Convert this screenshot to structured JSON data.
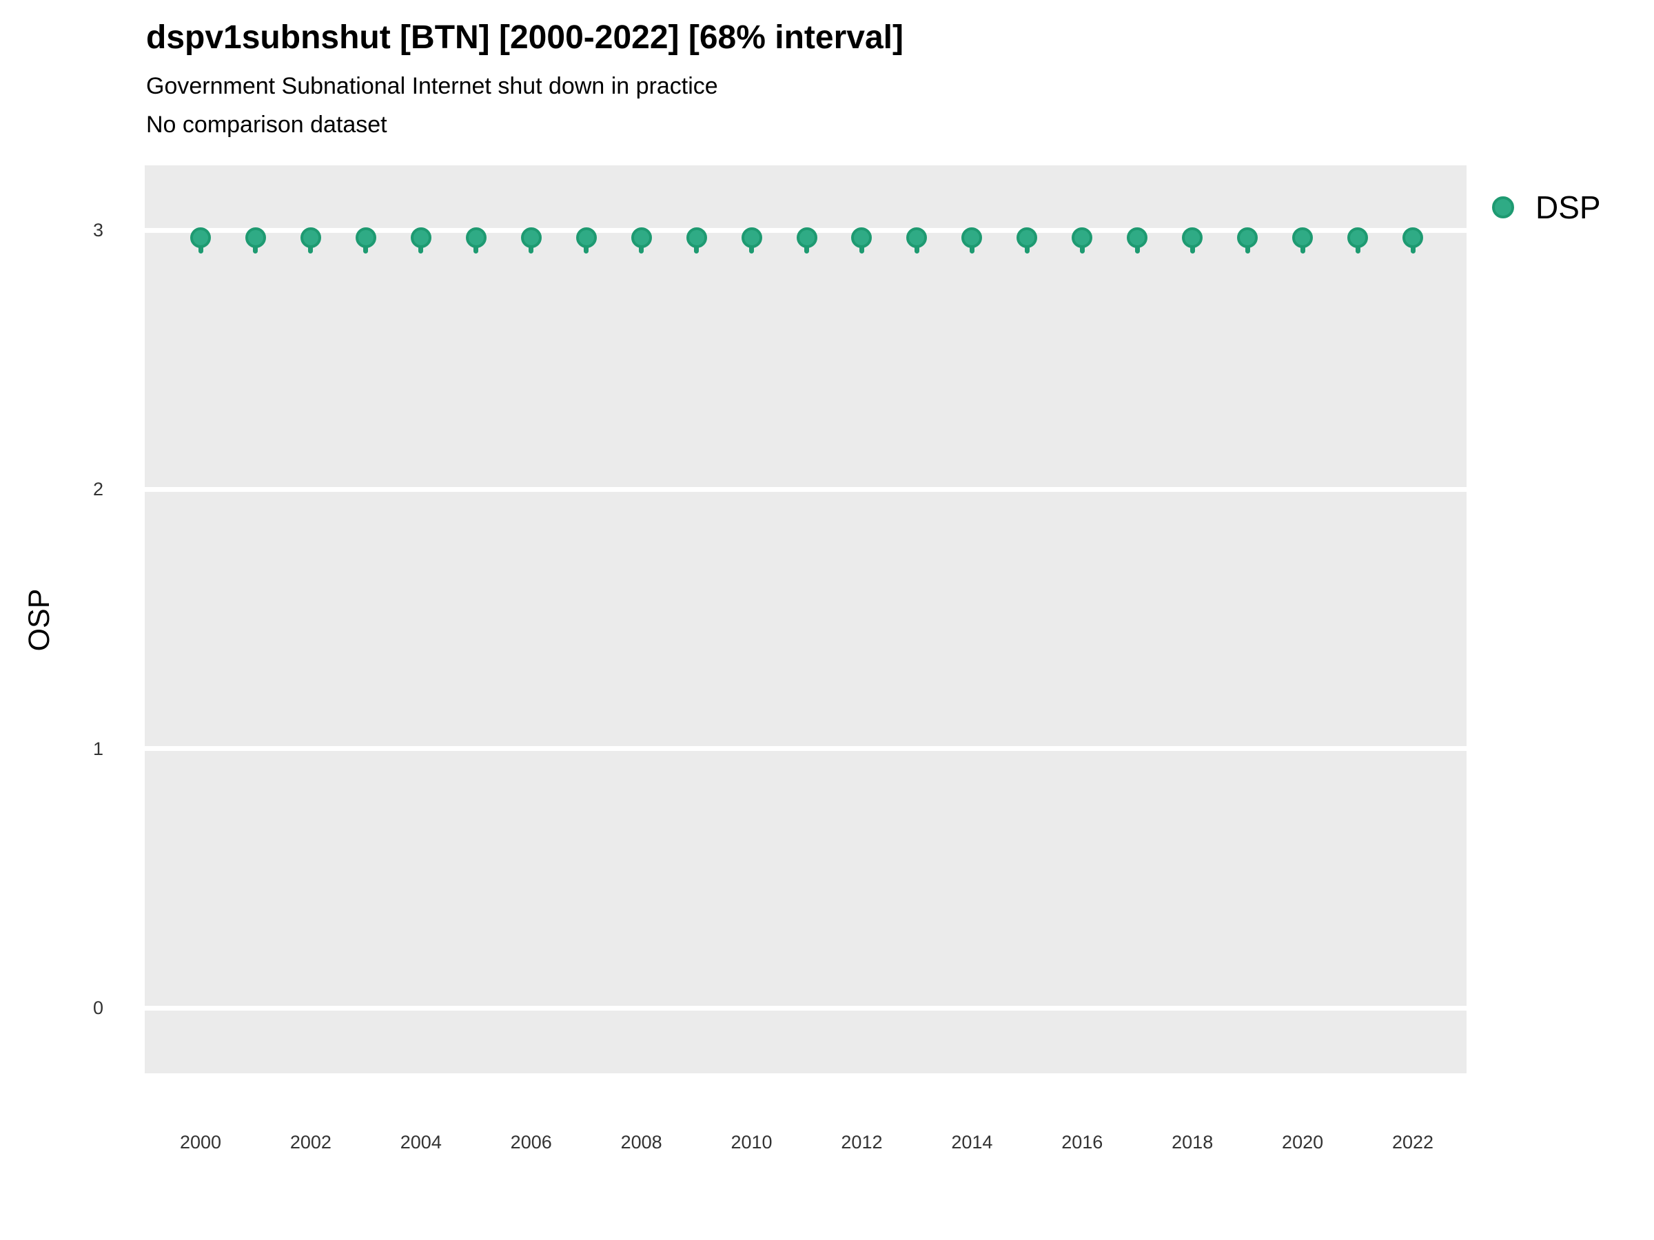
{
  "header": {
    "title": "dspv1subnshut [BTN] [2000-2022] [68% interval]",
    "subtitle": "Government Subnational Internet shut down in practice",
    "note": "No comparison dataset"
  },
  "legend": {
    "position": "right",
    "items": [
      {
        "label": "DSP",
        "color": "#2fab85",
        "stroke": "#1e9a71"
      }
    ]
  },
  "colors": {
    "point_fill": "#2fab85",
    "point_stroke": "#1e9a71",
    "plot_background": "#ebebeb",
    "gridline": "#ffffff",
    "tick_text": "#333333"
  },
  "chart_data": {
    "type": "scatter",
    "title": "dspv1subnshut [BTN] [2000-2022] [68% interval]",
    "subtitle": "Government Subnational Internet shut down in practice",
    "note": "No comparison dataset",
    "xlabel": "",
    "ylabel": "OSP",
    "x": [
      2000,
      2001,
      2002,
      2003,
      2004,
      2005,
      2006,
      2007,
      2008,
      2009,
      2010,
      2011,
      2012,
      2013,
      2014,
      2015,
      2016,
      2017,
      2018,
      2019,
      2020,
      2021,
      2022
    ],
    "series": [
      {
        "name": "DSP",
        "values": [
          2.97,
          2.97,
          2.97,
          2.97,
          2.97,
          2.97,
          2.97,
          2.97,
          2.97,
          2.97,
          2.97,
          2.97,
          2.97,
          2.97,
          2.97,
          2.97,
          2.97,
          2.97,
          2.97,
          2.97,
          2.97,
          2.97,
          2.97
        ]
      }
    ],
    "interval": {
      "level": "68%",
      "low": 2.91,
      "high": 2.98
    },
    "xticks": [
      2000,
      2002,
      2004,
      2006,
      2008,
      2010,
      2012,
      2014,
      2016,
      2018,
      2020,
      2022
    ],
    "yticks": [
      0,
      1,
      2,
      3
    ],
    "ylim": [
      -0.25,
      3.25
    ],
    "grid": "horizontal-major-only",
    "legend_position": "right"
  }
}
